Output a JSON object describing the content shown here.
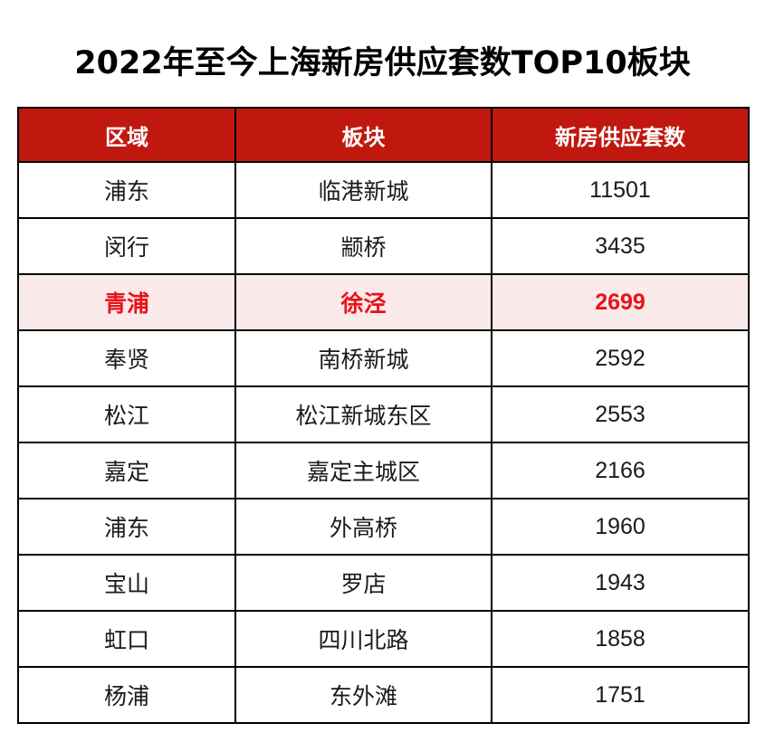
{
  "title": "2022年至今上海新房供应套数TOP10板块",
  "colors": {
    "header_bg": "#c0180f",
    "header_text": "#ffffff",
    "highlight_bg": "#fbeaea",
    "highlight_text": "#e8121c",
    "border": "#000000"
  },
  "chart_data": {
    "type": "table",
    "title": "2022年至今上海新房供应套数TOP10板块",
    "columns": [
      "区域",
      "板块",
      "新房供应套数"
    ],
    "highlighted_row_index": 2,
    "rows": [
      {
        "district": "浦东",
        "block": "临港新城",
        "supply": 11501
      },
      {
        "district": "闵行",
        "block": "颛桥",
        "supply": 3435
      },
      {
        "district": "青浦",
        "block": "徐泾",
        "supply": 2699
      },
      {
        "district": "奉贤",
        "block": "南桥新城",
        "supply": 2592
      },
      {
        "district": "松江",
        "block": "松江新城东区",
        "supply": 2553
      },
      {
        "district": "嘉定",
        "block": "嘉定主城区",
        "supply": 2166
      },
      {
        "district": "浦东",
        "block": "外高桥",
        "supply": 1960
      },
      {
        "district": "宝山",
        "block": "罗店",
        "supply": 1943
      },
      {
        "district": "虹口",
        "block": "四川北路",
        "supply": 1858
      },
      {
        "district": "杨浦",
        "block": "东外滩",
        "supply": 1751
      }
    ]
  }
}
